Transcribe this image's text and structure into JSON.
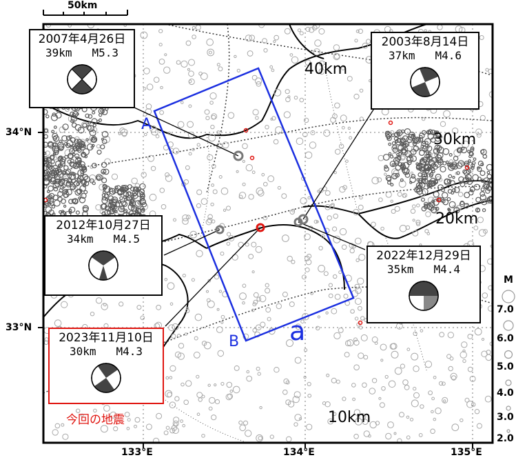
{
  "scale_bar": {
    "label": "50km"
  },
  "axes": {
    "lat_labels": [
      "34°N",
      "33°N"
    ],
    "lon_labels": [
      "133°E",
      "134°E",
      "135°E"
    ]
  },
  "depth_labels": [
    "40km",
    "30km",
    "20km",
    "10km"
  ],
  "section": {
    "start_label": "A",
    "end_label": "B",
    "name": "a",
    "color": "#1b2fe0"
  },
  "mechanisms": [
    {
      "date": "2007年4月26日",
      "depth": "39km",
      "magnitude": "M5.3"
    },
    {
      "date": "2003年8月14日",
      "depth": "37km",
      "magnitude": "M4.6"
    },
    {
      "date": "2012年10月27日",
      "depth": "34km",
      "magnitude": "M4.5"
    },
    {
      "date": "2022年12月29日",
      "depth": "35km",
      "magnitude": "M4.4"
    },
    {
      "date": "2023年11月10日",
      "depth": "30km",
      "magnitude": "M4.3",
      "highlight": true
    }
  ],
  "current_event_caption": "今回の地震",
  "magnitude_legend": {
    "title": "M",
    "values": [
      "7.0",
      "6.0",
      "5.0",
      "4.0",
      "3.0",
      "2.0"
    ]
  },
  "colors": {
    "section_line": "#1b2fe0",
    "current_event": "#e0140f",
    "background_events": "#a0a0a0",
    "deep_events": "#555555"
  }
}
